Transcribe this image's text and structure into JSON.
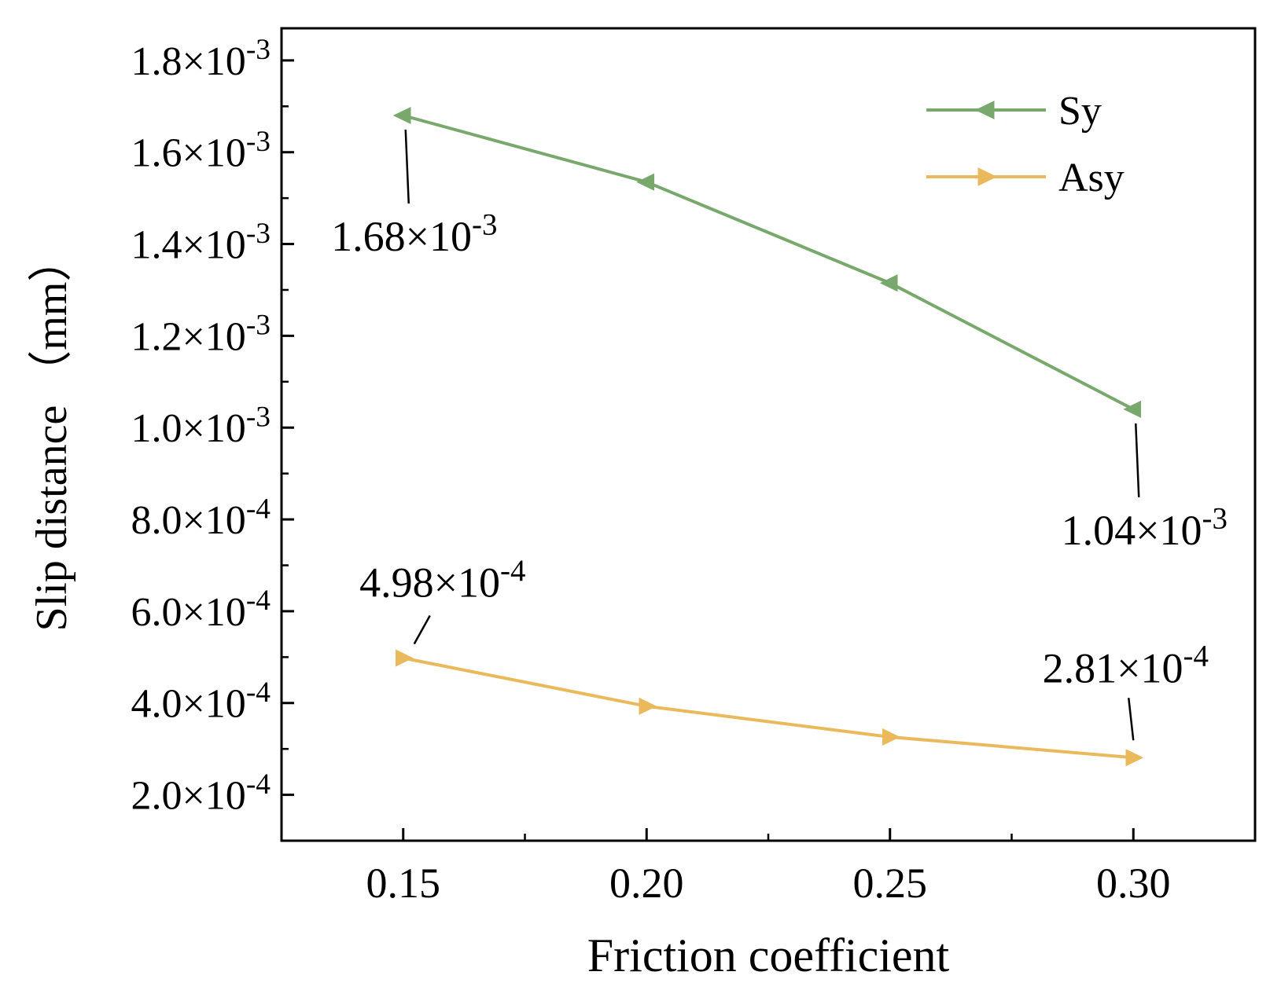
{
  "chart_data": {
    "type": "line",
    "xlabel": "Friction coefficient",
    "ylabel": "Slip distance （mm）",
    "x": [
      0.15,
      0.2,
      0.25,
      0.3
    ],
    "xlim": [
      0.125,
      0.325
    ],
    "ylim": [
      0.0001,
      0.00187
    ],
    "x_ticks": [
      {
        "value": 0.15,
        "label": "0.15"
      },
      {
        "value": 0.2,
        "label": "0.20"
      },
      {
        "value": 0.25,
        "label": "0.25"
      },
      {
        "value": 0.3,
        "label": "0.30"
      }
    ],
    "x_minor_ticks": [
      0.175,
      0.225,
      0.275
    ],
    "y_ticks": [
      {
        "value": 0.0002,
        "mant": "2.0",
        "exp": "-4"
      },
      {
        "value": 0.0004,
        "mant": "4.0",
        "exp": "-4"
      },
      {
        "value": 0.0006,
        "mant": "6.0",
        "exp": "-4"
      },
      {
        "value": 0.0008,
        "mant": "8.0",
        "exp": "-4"
      },
      {
        "value": 0.001,
        "mant": "1.0",
        "exp": "-3"
      },
      {
        "value": 0.0012,
        "mant": "1.2",
        "exp": "-3"
      },
      {
        "value": 0.0014,
        "mant": "1.4",
        "exp": "-3"
      },
      {
        "value": 0.0016,
        "mant": "1.6",
        "exp": "-3"
      },
      {
        "value": 0.0018,
        "mant": "1.8",
        "exp": "-3"
      }
    ],
    "y_minor_ticks": [
      0.0003,
      0.0005,
      0.0007,
      0.0009,
      0.0011,
      0.0013,
      0.0015,
      0.0017
    ],
    "series": [
      {
        "name": "Sy",
        "color": "#78a86c",
        "marker": "triangle-left",
        "values": [
          0.00168,
          0.001535,
          0.001315,
          0.00104
        ]
      },
      {
        "name": "Asy",
        "color": "#eab95c",
        "marker": "triangle-right",
        "values": [
          0.000498,
          0.000393,
          0.000326,
          0.000281
        ]
      }
    ],
    "annotations": [
      {
        "mant": "1.68",
        "exp": "-3",
        "series": "Sy",
        "x": 0.15,
        "y": 0.00168,
        "position": "below"
      },
      {
        "mant": "1.04",
        "exp": "-3",
        "series": "Sy",
        "x": 0.3,
        "y": 0.00104,
        "position": "below"
      },
      {
        "mant": "4.98",
        "exp": "-4",
        "series": "Asy",
        "x": 0.15,
        "y": 0.000498,
        "position": "above"
      },
      {
        "mant": "2.81",
        "exp": "-4",
        "series": "Asy",
        "x": 0.3,
        "y": 0.000281,
        "position": "above"
      }
    ],
    "legend": {
      "position": "top-right",
      "entries": [
        "Sy",
        "Asy"
      ]
    },
    "grid": false
  }
}
